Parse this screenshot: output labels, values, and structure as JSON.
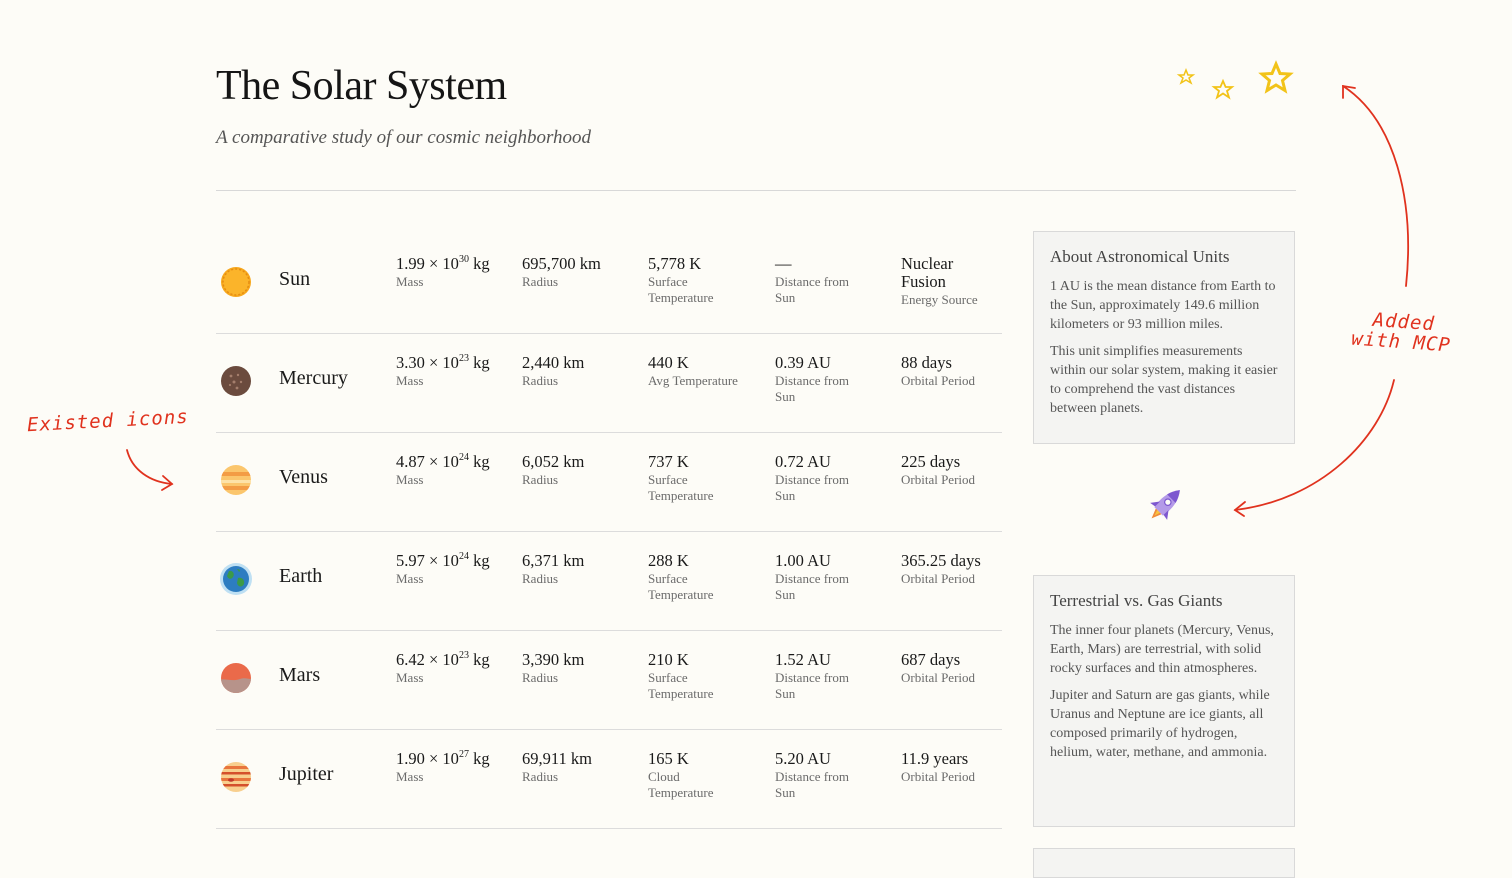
{
  "header": {
    "title": "The Solar System",
    "subtitle": "A comparative study of our cosmic neighborhood"
  },
  "bodies": [
    {
      "name": "Sun",
      "icon": "sun-icon",
      "mass_base": "1.99 × 10",
      "mass_exp": "30",
      "mass_unit": " kg",
      "mass_label": "Mass",
      "radius": "695,700 km",
      "radius_label": "Radius",
      "temp": "5,778 K",
      "temp_label": "Surface Temperature",
      "dist": "—",
      "dist_label": "Distance from Sun",
      "extra": "Nuclear Fusion",
      "extra_label": "Energy Source"
    },
    {
      "name": "Mercury",
      "icon": "mercury-icon",
      "mass_base": "3.30 × 10",
      "mass_exp": "23",
      "mass_unit": " kg",
      "mass_label": "Mass",
      "radius": "2,440 km",
      "radius_label": "Radius",
      "temp": "440 K",
      "temp_label": "Avg Temperature",
      "dist": "0.39 AU",
      "dist_label": "Distance from Sun",
      "extra": "88 days",
      "extra_label": "Orbital Period"
    },
    {
      "name": "Venus",
      "icon": "venus-icon",
      "mass_base": "4.87 × 10",
      "mass_exp": "24",
      "mass_unit": " kg",
      "mass_label": "Mass",
      "radius": "6,052 km",
      "radius_label": "Radius",
      "temp": "737 K",
      "temp_label": "Surface Temperature",
      "dist": "0.72 AU",
      "dist_label": "Distance from Sun",
      "extra": "225 days",
      "extra_label": "Orbital Period"
    },
    {
      "name": "Earth",
      "icon": "earth-icon",
      "mass_base": "5.97 × 10",
      "mass_exp": "24",
      "mass_unit": " kg",
      "mass_label": "Mass",
      "radius": "6,371 km",
      "radius_label": "Radius",
      "temp": "288 K",
      "temp_label": "Surface Temperature",
      "dist": "1.00 AU",
      "dist_label": "Distance from Sun",
      "extra": "365.25 days",
      "extra_label": "Orbital Period"
    },
    {
      "name": "Mars",
      "icon": "mars-icon",
      "mass_base": "6.42 × 10",
      "mass_exp": "23",
      "mass_unit": " kg",
      "mass_label": "Mass",
      "radius": "3,390 km",
      "radius_label": "Radius",
      "temp": "210 K",
      "temp_label": "Surface Temperature",
      "dist": "1.52 AU",
      "dist_label": "Distance from Sun",
      "extra": "687 days",
      "extra_label": "Orbital Period"
    },
    {
      "name": "Jupiter",
      "icon": "jupiter-icon",
      "mass_base": "1.90 × 10",
      "mass_exp": "27",
      "mass_unit": " kg",
      "mass_label": "Mass",
      "radius": "69,911 km",
      "radius_label": "Radius",
      "temp": "165 K",
      "temp_label": "Cloud Temperature",
      "dist": "5.20 AU",
      "dist_label": "Distance from Sun",
      "extra": "11.9 years",
      "extra_label": "Orbital Period"
    }
  ],
  "info_boxes": [
    {
      "title": "About Astronomical Units",
      "paragraphs": [
        "1 AU is the mean distance from Earth to the Sun, approximately 149.6 million kilometers or 93 million miles.",
        "This unit simplifies measurements within our solar system, making it easier to comprehend the vast distances between planets."
      ]
    },
    {
      "title": "Terrestrial vs. Gas Giants",
      "paragraphs": [
        "The inner four planets (Mercury, Venus, Earth, Mars) are terrestrial, with solid rocky surfaces and thin atmospheres.",
        "Jupiter and Saturn are gas giants, while Uranus and Neptune are ice giants, all composed primarily of hydrogen, helium, water, methane, and ammonia."
      ]
    }
  ],
  "annotations": {
    "left": "Existed icons",
    "right_line1": "Added",
    "right_line2": "with MCP"
  },
  "colors": {
    "accent_annotation": "#e0321e",
    "star": "#f2c318",
    "rocket": "#8f6ad8"
  },
  "decor": {
    "stars_icon": "stars-icon",
    "rocket_icon": "rocket-icon"
  }
}
